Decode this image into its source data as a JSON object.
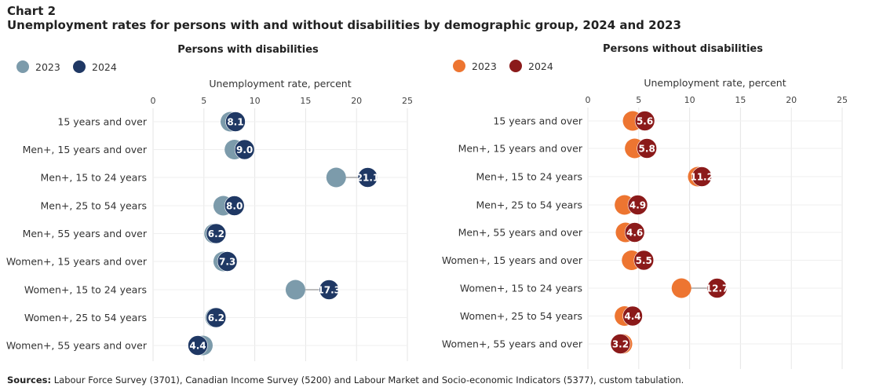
{
  "chart_label": "Chart 2",
  "title": "Unemployment rates for persons with and without disabilities by demographic group, 2024 and 2023",
  "sources_label": "Sources:",
  "sources_text": "Labour Force Survey (3701), Canadian Income Survey (5200) and Labour Market and Socio-economic Indicators (5377), custom tabulation.",
  "chart_data": [
    {
      "type": "dumbbell",
      "title": "Persons with disabilities",
      "xlabel": "Unemployment rate, percent",
      "xlim": [
        0,
        25
      ],
      "xticks": [
        0,
        5,
        10,
        15,
        20,
        25
      ],
      "legend": [
        {
          "name": "2023",
          "color": "#7c9bab"
        },
        {
          "name": "2024",
          "color": "#1f3864"
        }
      ],
      "categories": [
        "15 years and over",
        "Men+, 15 years and over",
        "Men+, 15 to 24 years",
        "Men+, 25 to 54 years",
        "Men+, 55 years and over",
        "Women+, 15 years and over",
        "Women+, 15 to 24 years",
        "Women+, 25 to 54 years",
        "Women+, 55 years and over"
      ],
      "series": [
        {
          "name": "2023",
          "values": [
            7.6,
            8.0,
            18.0,
            6.9,
            6.0,
            6.9,
            14.0,
            6.1,
            4.9
          ]
        },
        {
          "name": "2024",
          "values": [
            8.1,
            9.0,
            21.1,
            8.0,
            6.2,
            7.3,
            17.3,
            6.2,
            4.4
          ]
        }
      ],
      "data_labels": [
        "8.1",
        "9.0",
        "21.1",
        "8.0",
        "6.2",
        "7.3",
        "17.3",
        "6.2",
        "4.4"
      ]
    },
    {
      "type": "dumbbell",
      "title": "Persons without disabilities",
      "xlabel": "Unemployment rate, percent",
      "xlim": [
        0,
        25
      ],
      "xticks": [
        0,
        5,
        10,
        15,
        20,
        25
      ],
      "legend": [
        {
          "name": "2023",
          "color": "#ed7531"
        },
        {
          "name": "2024",
          "color": "#8b1a1a"
        }
      ],
      "categories": [
        "15 years and over",
        "Men+, 15 years and over",
        "Men+, 15 to 24 years",
        "Men+, 25 to 54 years",
        "Men+, 55 years and over",
        "Women+, 15 years and over",
        "Women+, 15 to 24 years",
        "Women+, 25 to 54 years",
        "Women+, 55 years and over"
      ],
      "series": [
        {
          "name": "2023",
          "values": [
            4.4,
            4.6,
            10.8,
            3.6,
            3.7,
            4.3,
            9.2,
            3.6,
            3.4
          ]
        },
        {
          "name": "2024",
          "values": [
            5.6,
            5.8,
            11.2,
            4.9,
            4.6,
            5.5,
            12.7,
            4.4,
            3.2
          ]
        }
      ],
      "data_labels": [
        "5.6",
        "5.8",
        "11.2",
        "4.9",
        "4.6",
        "5.5",
        "12.7",
        "4.4",
        "3.2"
      ]
    }
  ]
}
